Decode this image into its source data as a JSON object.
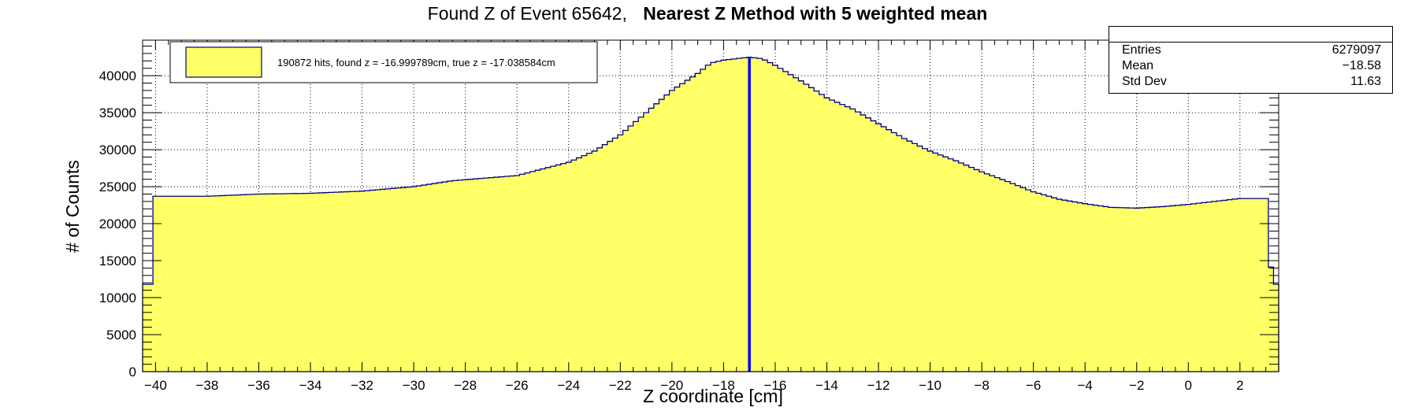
{
  "title": {
    "part1": "Found Z of Event 65642,",
    "part2": "Nearest Z Method with 5 weighted mean"
  },
  "legend": {
    "entry": "190872 hits, found z = -16.999789cm, true z = -17.038584cm",
    "fill_color": "#ffff66",
    "border_color": "#000080"
  },
  "stats": {
    "rows": [
      {
        "label": "Entries",
        "value": "6279097"
      },
      {
        "label": "Mean",
        "value": "−18.58"
      },
      {
        "label": "Std Dev",
        "value": "11.63"
      }
    ]
  },
  "chart_data": {
    "type": "bar",
    "title": "Found Z of Event 65642,   Nearest Z Method with 5 weighted mean",
    "xlabel": "Z coordinate [cm]",
    "ylabel": "# of Counts",
    "xlim": [
      -40.5,
      3.5
    ],
    "ylim": [
      0,
      44800
    ],
    "xticks": [
      -40,
      -38,
      -36,
      -34,
      -32,
      -30,
      -28,
      -26,
      -24,
      -22,
      -20,
      -18,
      -16,
      -14,
      -12,
      -10,
      -8,
      -6,
      -4,
      -2,
      0,
      2
    ],
    "yticks": [
      0,
      5000,
      10000,
      15000,
      20000,
      25000,
      30000,
      35000,
      40000
    ],
    "grid": true,
    "legend_position": "top-left",
    "series_color": "#ffff66",
    "outline_color": "#000080",
    "marker_line": {
      "x": -17.0,
      "color": "#0000ff"
    },
    "profile": [
      [
        -40.5,
        11800
      ],
      [
        -40.25,
        23700
      ],
      [
        -38,
        23700
      ],
      [
        -36,
        24000
      ],
      [
        -34,
        24100
      ],
      [
        -32,
        24400
      ],
      [
        -30,
        25000
      ],
      [
        -28.5,
        25800
      ],
      [
        -26,
        26500
      ],
      [
        -24,
        28300
      ],
      [
        -23,
        29800
      ],
      [
        -22,
        32000
      ],
      [
        -21,
        35000
      ],
      [
        -20,
        38000
      ],
      [
        -19,
        40300
      ],
      [
        -18.5,
        41700
      ],
      [
        -18,
        42100
      ],
      [
        -17,
        42500
      ],
      [
        -16.5,
        42300
      ],
      [
        -16,
        41400
      ],
      [
        -15,
        39300
      ],
      [
        -14,
        37000
      ],
      [
        -13,
        35500
      ],
      [
        -12,
        33500
      ],
      [
        -11,
        31500
      ],
      [
        -10,
        29800
      ],
      [
        -9,
        28500
      ],
      [
        -8,
        27000
      ],
      [
        -7,
        25700
      ],
      [
        -6,
        24300
      ],
      [
        -5,
        23300
      ],
      [
        -4,
        22700
      ],
      [
        -3,
        22200
      ],
      [
        -2,
        22100
      ],
      [
        -1,
        22300
      ],
      [
        0,
        22600
      ],
      [
        1,
        23000
      ],
      [
        2,
        23400
      ],
      [
        3,
        23400
      ],
      [
        3.25,
        11800
      ],
      [
        3.5,
        11800
      ]
    ]
  }
}
